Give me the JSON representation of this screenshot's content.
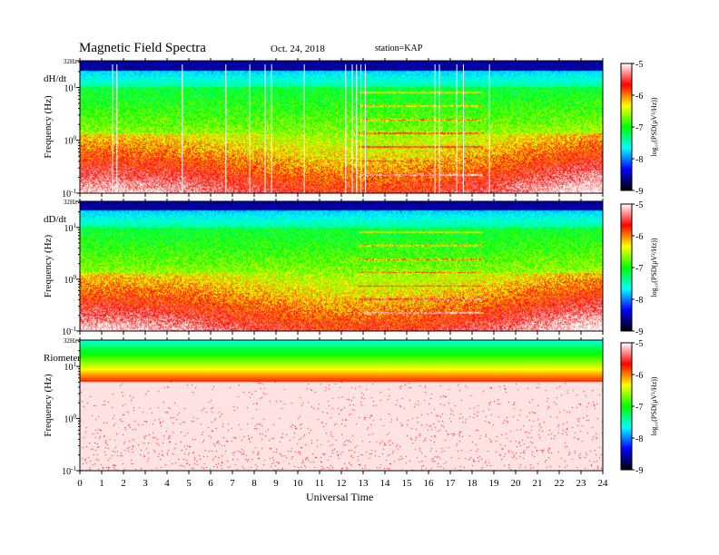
{
  "header": {
    "title": "Magnetic  Field  Spectra",
    "date": "Oct. 24, 2018",
    "station": "station=KAP"
  },
  "chart_data": {
    "type": "heatmap",
    "xlabel": "Universal Time",
    "xlim": [
      0,
      24
    ],
    "x_ticks": [
      "0",
      "1",
      "2",
      "3",
      "4",
      "5",
      "6",
      "7",
      "8",
      "9",
      "10",
      "11",
      "12",
      "13",
      "14",
      "15",
      "16",
      "17",
      "18",
      "19",
      "20",
      "21",
      "22",
      "23",
      "24"
    ],
    "ylabel": "Frequency  (Hz)",
    "y_scale": "log",
    "ylim_hz": [
      0.1,
      32
    ],
    "y_tick_labels": [
      {
        "value": 32,
        "base": "32Hz",
        "exp": ""
      },
      {
        "value": 10,
        "base": "10",
        "exp": "1"
      },
      {
        "value": 1,
        "base": "10",
        "exp": "0"
      },
      {
        "value": 0.1,
        "base": "10",
        "exp": "-1"
      }
    ],
    "colorbar": {
      "label": "log₁₀(PSD(μV²/Hz))",
      "range": [
        -9,
        -5
      ],
      "ticks": [
        "-5",
        "-6",
        "-7",
        "-8",
        "-9"
      ],
      "colors": [
        "#ffffff",
        "#ff0000",
        "#ffff00",
        "#00ff00",
        "#00ffff",
        "#0000ff",
        "#000000"
      ]
    },
    "panels": [
      {
        "name": "dH/dt",
        "event_band_hours": [
          12.8,
          18.5
        ],
        "vertical_lines_hours": [
          1.5,
          1.7,
          4.7,
          6.7,
          7.8,
          8.5,
          8.8,
          10.3,
          12.2,
          12.5,
          12.7,
          12.9,
          13.1,
          16.3,
          16.5,
          17.3,
          17.6,
          18.8
        ]
      },
      {
        "name": "dD/dt",
        "event_band_hours": [
          12.8,
          18.5
        ],
        "vertical_lines_hours": []
      },
      {
        "name": "Riometer",
        "event_band_hours": [],
        "vertical_lines_hours": []
      }
    ]
  }
}
